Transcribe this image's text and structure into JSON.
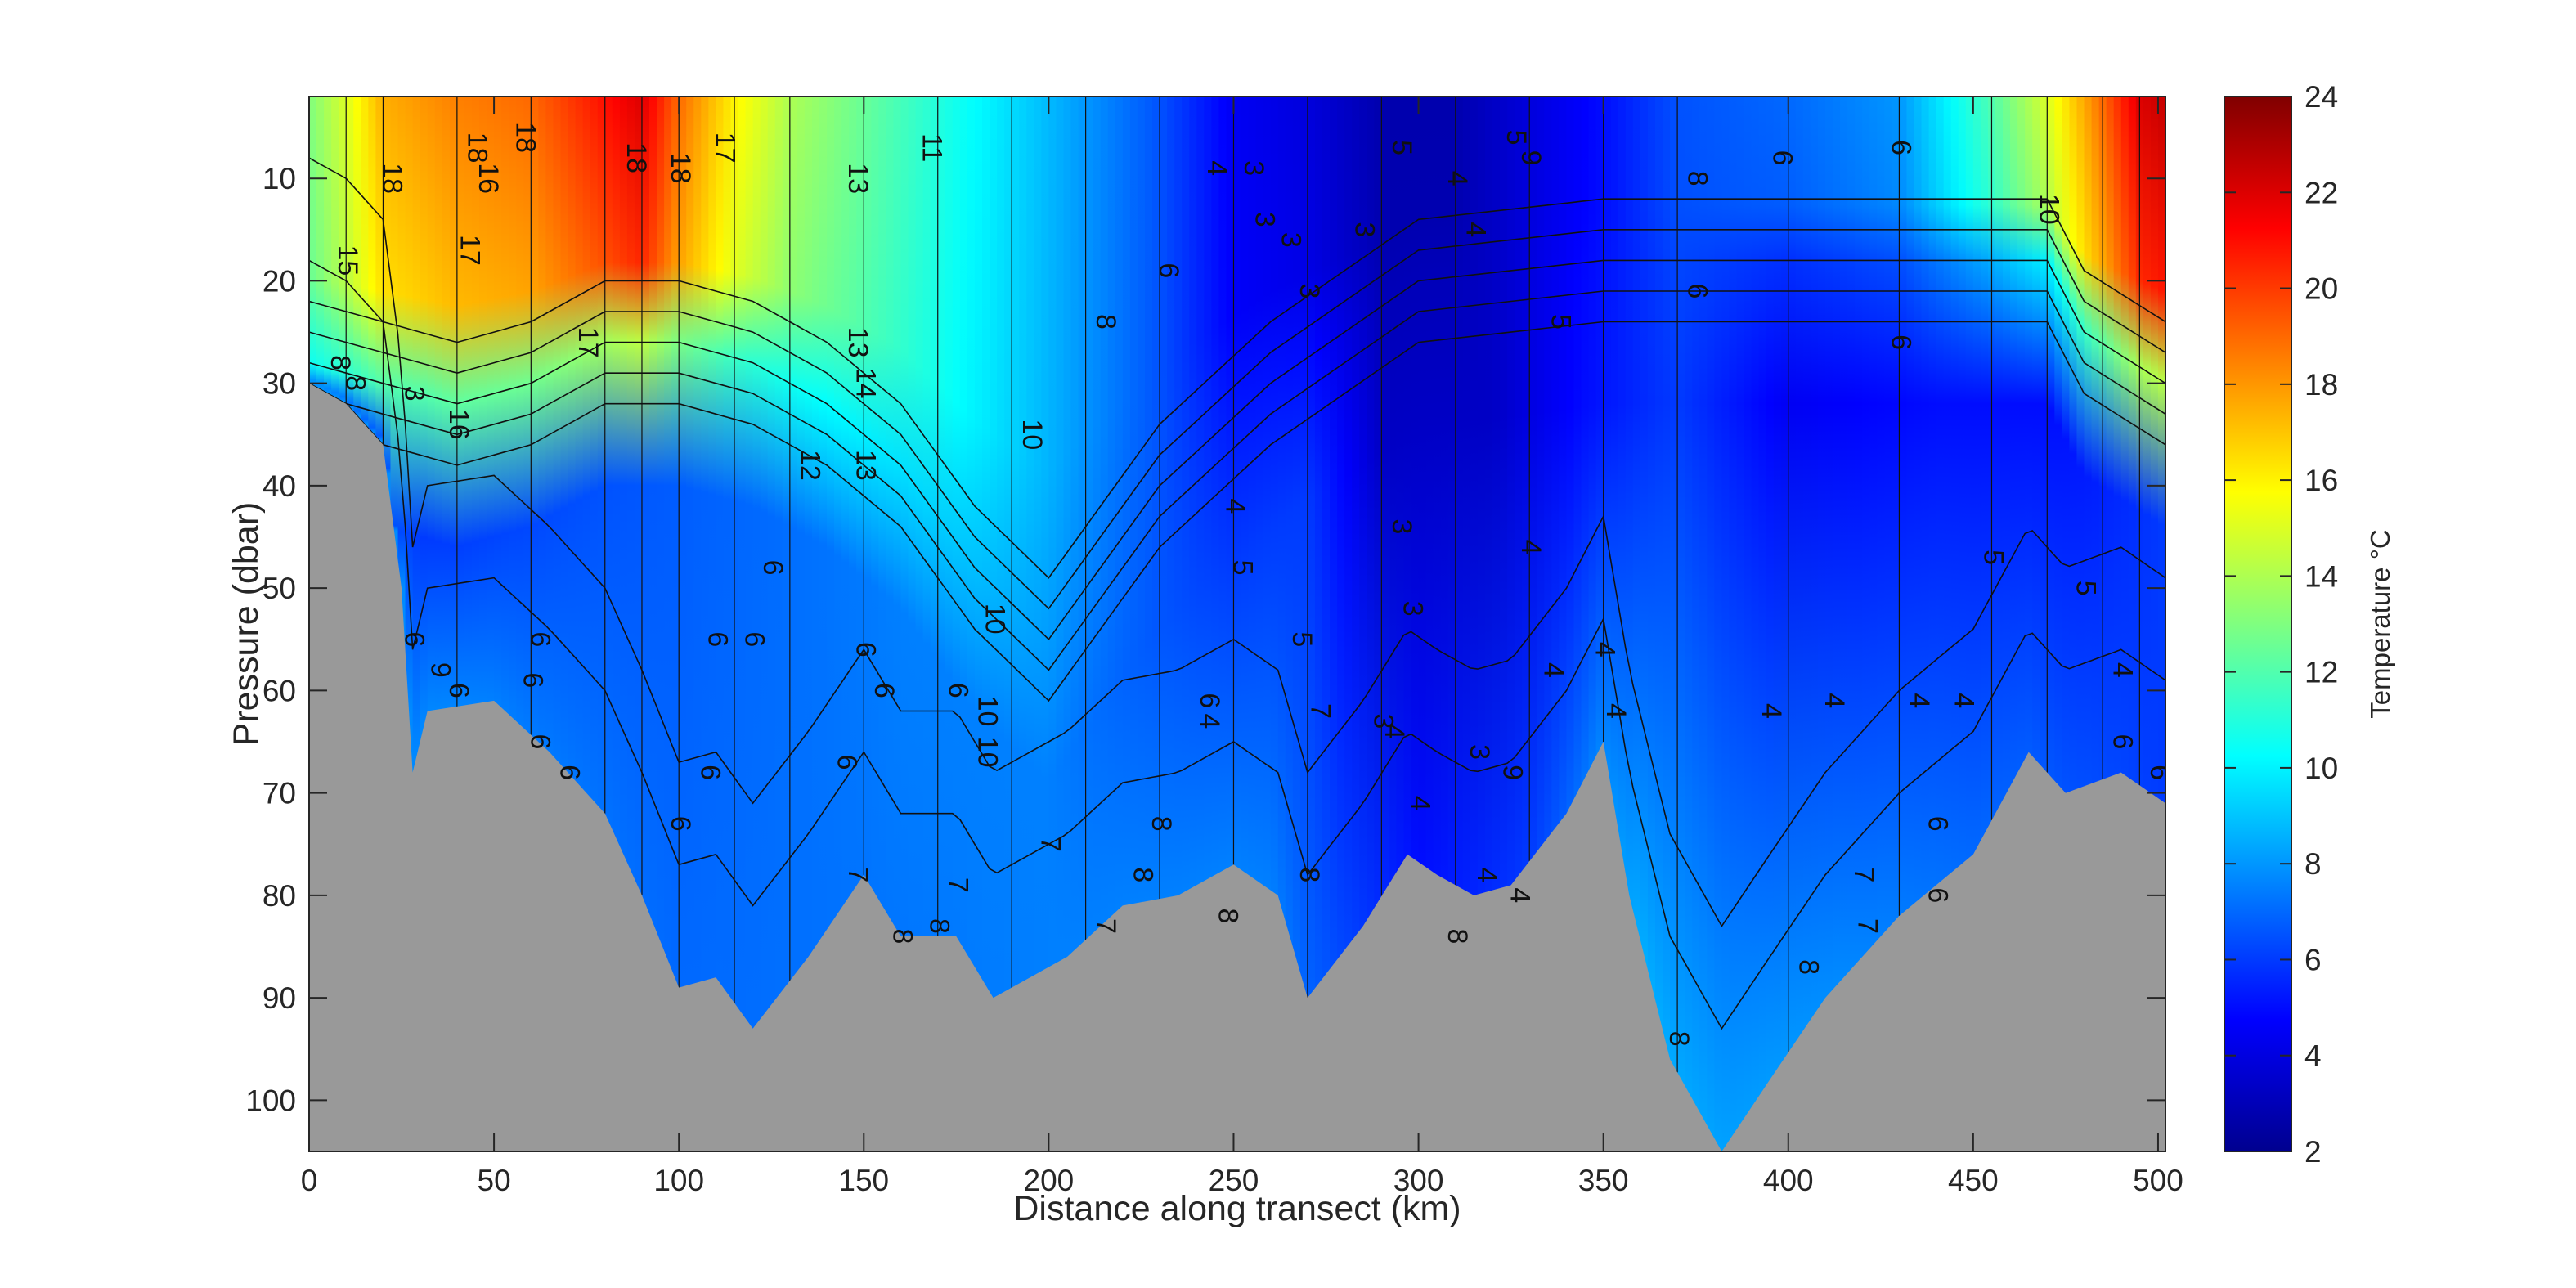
{
  "chart_data": {
    "type": "heatmap",
    "title": "",
    "xlabel": "Distance along transect (km)",
    "ylabel": "Pressure (dbar)",
    "colorbar_label": "Temperature °C",
    "colormap": "jet",
    "xlim": [
      0,
      502
    ],
    "ylim": [
      105,
      2
    ],
    "y_reversed": true,
    "x_ticks": [
      "0",
      "50",
      "100",
      "150",
      "200",
      "250",
      "300",
      "350",
      "400",
      "450",
      "500"
    ],
    "y_ticks": [
      "10",
      "20",
      "30",
      "40",
      "50",
      "60",
      "70",
      "80",
      "90",
      "100"
    ],
    "colorbar_range": [
      2,
      24
    ],
    "colorbar_ticks": [
      "2",
      "4",
      "6",
      "8",
      "10",
      "12",
      "14",
      "16",
      "18",
      "20",
      "22",
      "24"
    ],
    "seabed_color": "#999999",
    "surface_temperature": [
      {
        "x": 0,
        "t": 13
      },
      {
        "x": 10,
        "t": 15
      },
      {
        "x": 20,
        "t": 17.5
      },
      {
        "x": 40,
        "t": 18.5
      },
      {
        "x": 60,
        "t": 19
      },
      {
        "x": 80,
        "t": 21
      },
      {
        "x": 90,
        "t": 22
      },
      {
        "x": 100,
        "t": 19
      },
      {
        "x": 115,
        "t": 16
      },
      {
        "x": 130,
        "t": 14
      },
      {
        "x": 150,
        "t": 12.5
      },
      {
        "x": 170,
        "t": 11
      },
      {
        "x": 190,
        "t": 9.5
      },
      {
        "x": 210,
        "t": 8
      },
      {
        "x": 230,
        "t": 6.5
      },
      {
        "x": 250,
        "t": 4.5
      },
      {
        "x": 270,
        "t": 4
      },
      {
        "x": 290,
        "t": 3
      },
      {
        "x": 310,
        "t": 3
      },
      {
        "x": 330,
        "t": 4
      },
      {
        "x": 350,
        "t": 5
      },
      {
        "x": 370,
        "t": 6.5
      },
      {
        "x": 400,
        "t": 7
      },
      {
        "x": 430,
        "t": 8
      },
      {
        "x": 455,
        "t": 12
      },
      {
        "x": 470,
        "t": 15
      },
      {
        "x": 485,
        "t": 19
      },
      {
        "x": 495,
        "t": 22
      },
      {
        "x": 502,
        "t": 22.5
      }
    ],
    "mixed_layer_depth": [
      {
        "x": 0,
        "p": 28
      },
      {
        "x": 20,
        "p": 30
      },
      {
        "x": 40,
        "p": 32
      },
      {
        "x": 60,
        "p": 30
      },
      {
        "x": 80,
        "p": 26
      },
      {
        "x": 100,
        "p": 26
      },
      {
        "x": 120,
        "p": 28
      },
      {
        "x": 140,
        "p": 32
      },
      {
        "x": 160,
        "p": 38
      },
      {
        "x": 180,
        "p": 48
      },
      {
        "x": 200,
        "p": 55
      },
      {
        "x": 230,
        "p": 40
      },
      {
        "x": 260,
        "p": 30
      },
      {
        "x": 300,
        "p": 20
      },
      {
        "x": 350,
        "p": 18
      },
      {
        "x": 400,
        "p": 18
      },
      {
        "x": 450,
        "p": 18
      },
      {
        "x": 470,
        "p": 18
      },
      {
        "x": 480,
        "p": 25
      },
      {
        "x": 502,
        "p": 30
      }
    ],
    "deep_temperature": [
      {
        "x": 0,
        "t": 8
      },
      {
        "x": 30,
        "t": 6
      },
      {
        "x": 80,
        "t": 6.5
      },
      {
        "x": 120,
        "t": 7
      },
      {
        "x": 160,
        "t": 7.5
      },
      {
        "x": 200,
        "t": 7.5
      },
      {
        "x": 250,
        "t": 6
      },
      {
        "x": 270,
        "t": 6
      },
      {
        "x": 290,
        "t": 3.5
      },
      {
        "x": 320,
        "t": 3.5
      },
      {
        "x": 345,
        "t": 5
      },
      {
        "x": 370,
        "t": 6
      },
      {
        "x": 400,
        "t": 4.5
      },
      {
        "x": 440,
        "t": 5
      },
      {
        "x": 470,
        "t": 5
      },
      {
        "x": 502,
        "t": 6
      }
    ],
    "bottom_water_temperature": [
      {
        "x": 0,
        "t": 8
      },
      {
        "x": 100,
        "t": 7
      },
      {
        "x": 200,
        "t": 7.5
      },
      {
        "x": 260,
        "t": 7.5
      },
      {
        "x": 300,
        "t": 5
      },
      {
        "x": 330,
        "t": 6
      },
      {
        "x": 360,
        "t": 8.5
      },
      {
        "x": 400,
        "t": 8
      },
      {
        "x": 450,
        "t": 7
      },
      {
        "x": 502,
        "t": 6
      }
    ],
    "seabed": [
      {
        "x": 0,
        "p": 30
      },
      {
        "x": 10,
        "p": 32
      },
      {
        "x": 20,
        "p": 36
      },
      {
        "x": 25,
        "p": 50
      },
      {
        "x": 28,
        "p": 68
      },
      {
        "x": 32,
        "p": 62
      },
      {
        "x": 50,
        "p": 61
      },
      {
        "x": 65,
        "p": 66
      },
      {
        "x": 80,
        "p": 72
      },
      {
        "x": 90,
        "p": 80
      },
      {
        "x": 100,
        "p": 89
      },
      {
        "x": 110,
        "p": 88
      },
      {
        "x": 120,
        "p": 93
      },
      {
        "x": 135,
        "p": 86
      },
      {
        "x": 150,
        "p": 78
      },
      {
        "x": 160,
        "p": 84
      },
      {
        "x": 175,
        "p": 84
      },
      {
        "x": 185,
        "p": 90
      },
      {
        "x": 205,
        "p": 86
      },
      {
        "x": 220,
        "p": 81
      },
      {
        "x": 235,
        "p": 80
      },
      {
        "x": 250,
        "p": 77
      },
      {
        "x": 262,
        "p": 80
      },
      {
        "x": 270,
        "p": 90
      },
      {
        "x": 285,
        "p": 83
      },
      {
        "x": 297,
        "p": 76
      },
      {
        "x": 305,
        "p": 78
      },
      {
        "x": 315,
        "p": 80
      },
      {
        "x": 325,
        "p": 79
      },
      {
        "x": 340,
        "p": 72
      },
      {
        "x": 350,
        "p": 65
      },
      {
        "x": 357,
        "p": 80
      },
      {
        "x": 368,
        "p": 96
      },
      {
        "x": 382,
        "p": 105
      },
      {
        "x": 395,
        "p": 98
      },
      {
        "x": 410,
        "p": 90
      },
      {
        "x": 430,
        "p": 82
      },
      {
        "x": 450,
        "p": 76
      },
      {
        "x": 465,
        "p": 66
      },
      {
        "x": 475,
        "p": 70
      },
      {
        "x": 490,
        "p": 68
      },
      {
        "x": 502,
        "p": 71
      }
    ],
    "contour_labels": [
      {
        "x": 22,
        "p": 10,
        "text": "18"
      },
      {
        "x": 45,
        "p": 7,
        "text": "18"
      },
      {
        "x": 58,
        "p": 6,
        "text": "18"
      },
      {
        "x": 88,
        "p": 8,
        "text": "18"
      },
      {
        "x": 100,
        "p": 9,
        "text": "18"
      },
      {
        "x": 112,
        "p": 7,
        "text": "17"
      },
      {
        "x": 43,
        "p": 17,
        "text": "17"
      },
      {
        "x": 48,
        "p": 10,
        "text": "16"
      },
      {
        "x": 10,
        "p": 18,
        "text": "15"
      },
      {
        "x": 75,
        "p": 26,
        "text": "17"
      },
      {
        "x": 40,
        "p": 34,
        "text": "16"
      },
      {
        "x": 148,
        "p": 26,
        "text": "13"
      },
      {
        "x": 150,
        "p": 30,
        "text": "14"
      },
      {
        "x": 135,
        "p": 38,
        "text": "12"
      },
      {
        "x": 150,
        "p": 38,
        "text": "13"
      },
      {
        "x": 148,
        "p": 10,
        "text": "13"
      },
      {
        "x": 168,
        "p": 7,
        "text": "11"
      },
      {
        "x": 185,
        "p": 53,
        "text": "10"
      },
      {
        "x": 183,
        "p": 62,
        "text": "10"
      },
      {
        "x": 183,
        "p": 66,
        "text": "10"
      },
      {
        "x": 215,
        "p": 24,
        "text": "8"
      },
      {
        "x": 232,
        "p": 19,
        "text": "6"
      },
      {
        "x": 245,
        "p": 9,
        "text": "4"
      },
      {
        "x": 255,
        "p": 9,
        "text": "3"
      },
      {
        "x": 258,
        "p": 14,
        "text": "3"
      },
      {
        "x": 265,
        "p": 16,
        "text": "3"
      },
      {
        "x": 250,
        "p": 42,
        "text": "4"
      },
      {
        "x": 252,
        "p": 48,
        "text": "5"
      },
      {
        "x": 270,
        "p": 21,
        "text": "3"
      },
      {
        "x": 285,
        "p": 15,
        "text": "3"
      },
      {
        "x": 295,
        "p": 7,
        "text": "5"
      },
      {
        "x": 295,
        "p": 44,
        "text": "3"
      },
      {
        "x": 298,
        "p": 52,
        "text": "3"
      },
      {
        "x": 268,
        "p": 55,
        "text": "5"
      },
      {
        "x": 273,
        "p": 62,
        "text": "7"
      },
      {
        "x": 315,
        "p": 15,
        "text": "4"
      },
      {
        "x": 310,
        "p": 10,
        "text": "4"
      },
      {
        "x": 326,
        "p": 6,
        "text": "5"
      },
      {
        "x": 330,
        "p": 8,
        "text": "9"
      },
      {
        "x": 338,
        "p": 24,
        "text": "5"
      },
      {
        "x": 330,
        "p": 46,
        "text": "4"
      },
      {
        "x": 336,
        "p": 58,
        "text": "4"
      },
      {
        "x": 350,
        "p": 56,
        "text": "4"
      },
      {
        "x": 353,
        "p": 62,
        "text": "4"
      },
      {
        "x": 325,
        "p": 68,
        "text": "9"
      },
      {
        "x": 398,
        "p": 8,
        "text": "6"
      },
      {
        "x": 375,
        "p": 10,
        "text": "8"
      },
      {
        "x": 430,
        "p": 7,
        "text": "6"
      },
      {
        "x": 375,
        "p": 21,
        "text": "6"
      },
      {
        "x": 430,
        "p": 26,
        "text": "6"
      },
      {
        "x": 470,
        "p": 13,
        "text": "10"
      },
      {
        "x": 455,
        "p": 47,
        "text": "5"
      },
      {
        "x": 480,
        "p": 50,
        "text": "5"
      },
      {
        "x": 395,
        "p": 62,
        "text": "4"
      },
      {
        "x": 412,
        "p": 61,
        "text": "4"
      },
      {
        "x": 435,
        "p": 61,
        "text": "4"
      },
      {
        "x": 447,
        "p": 61,
        "text": "4"
      },
      {
        "x": 490,
        "p": 58,
        "text": "4"
      },
      {
        "x": 500,
        "p": 68,
        "text": "6"
      },
      {
        "x": 490,
        "p": 65,
        "text": "6"
      },
      {
        "x": 440,
        "p": 73,
        "text": "6"
      },
      {
        "x": 440,
        "p": 80,
        "text": "6"
      },
      {
        "x": 420,
        "p": 78,
        "text": "7"
      },
      {
        "x": 421,
        "p": 83,
        "text": "7"
      },
      {
        "x": 405,
        "p": 87,
        "text": "8"
      },
      {
        "x": 370,
        "p": 94,
        "text": "8"
      },
      {
        "x": 310,
        "p": 84,
        "text": "8"
      },
      {
        "x": 270,
        "p": 78,
        "text": "8"
      },
      {
        "x": 248,
        "p": 82,
        "text": "8"
      },
      {
        "x": 230,
        "p": 73,
        "text": "8"
      },
      {
        "x": 225,
        "p": 78,
        "text": "8"
      },
      {
        "x": 215,
        "p": 83,
        "text": "7"
      },
      {
        "x": 170,
        "p": 83,
        "text": "8"
      },
      {
        "x": 160,
        "p": 84,
        "text": "8"
      },
      {
        "x": 175,
        "p": 79,
        "text": "7"
      },
      {
        "x": 148,
        "p": 78,
        "text": "7"
      },
      {
        "x": 145,
        "p": 67,
        "text": "6"
      },
      {
        "x": 150,
        "p": 56,
        "text": "6"
      },
      {
        "x": 155,
        "p": 60,
        "text": "6"
      },
      {
        "x": 175,
        "p": 60,
        "text": "6"
      },
      {
        "x": 100,
        "p": 73,
        "text": "6"
      },
      {
        "x": 108,
        "p": 68,
        "text": "6"
      },
      {
        "x": 110,
        "p": 55,
        "text": "6"
      },
      {
        "x": 120,
        "p": 55,
        "text": "6"
      },
      {
        "x": 125,
        "p": 48,
        "text": "6"
      },
      {
        "x": 62,
        "p": 55,
        "text": "6"
      },
      {
        "x": 70,
        "p": 68,
        "text": "6"
      },
      {
        "x": 28,
        "p": 55,
        "text": "6"
      },
      {
        "x": 40,
        "p": 60,
        "text": "6"
      },
      {
        "x": 35,
        "p": 58,
        "text": "9"
      },
      {
        "x": 60,
        "p": 59,
        "text": "6"
      },
      {
        "x": 62,
        "p": 65,
        "text": "6"
      },
      {
        "x": 12,
        "p": 30,
        "text": "8"
      },
      {
        "x": 8,
        "p": 28,
        "text": "8"
      },
      {
        "x": 28,
        "p": 31,
        "text": "3"
      },
      {
        "x": 200,
        "p": 75,
        "text": "7"
      },
      {
        "x": 195,
        "p": 35,
        "text": "10"
      },
      {
        "x": 243,
        "p": 63,
        "text": "4"
      },
      {
        "x": 243,
        "p": 61,
        "text": "6"
      },
      {
        "x": 290,
        "p": 63,
        "text": "3"
      },
      {
        "x": 293,
        "p": 64,
        "text": "4"
      },
      {
        "x": 316,
        "p": 66,
        "text": "3"
      },
      {
        "x": 300,
        "p": 71,
        "text": "4"
      },
      {
        "x": 318,
        "p": 78,
        "text": "4"
      },
      {
        "x": 327,
        "p": 80,
        "text": "4"
      }
    ]
  }
}
